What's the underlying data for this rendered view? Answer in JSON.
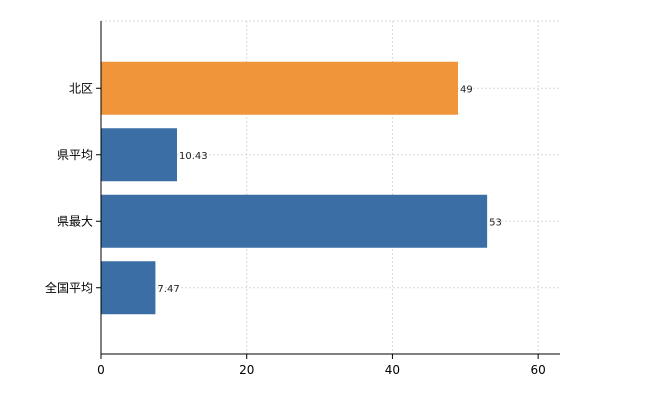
{
  "chart_data": {
    "type": "bar",
    "orientation": "horizontal",
    "categories": [
      "北区",
      "県平均",
      "県最大",
      "全国平均"
    ],
    "values": [
      49,
      10.43,
      53,
      7.47
    ],
    "value_labels": [
      "49",
      "10.43",
      "53",
      "7.47"
    ],
    "bar_colors": [
      "#f0953a",
      "#3a6ea5",
      "#3a6ea5",
      "#3a6ea5"
    ],
    "xlim": [
      0,
      63
    ],
    "x_ticks": [
      0,
      20,
      40,
      60
    ],
    "x_tick_labels": [
      "0",
      "20",
      "40",
      "60"
    ],
    "title": "",
    "xlabel": "",
    "ylabel": "",
    "grid": true,
    "legend": "none"
  }
}
